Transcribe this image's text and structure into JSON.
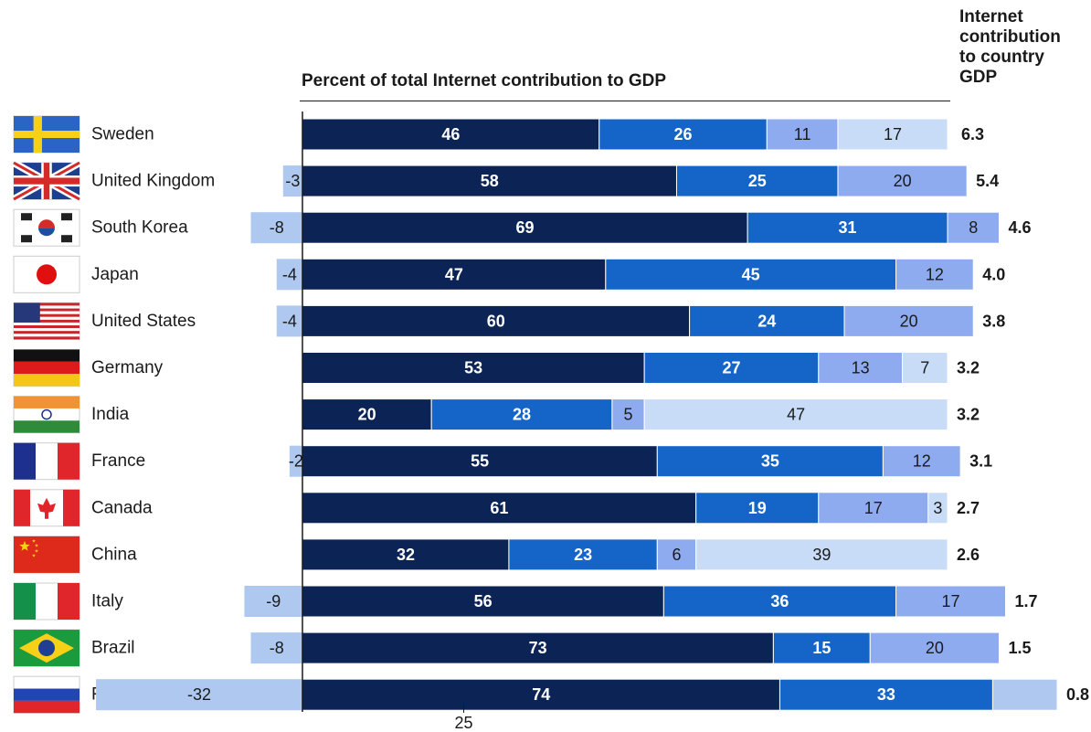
{
  "chart_data": {
    "type": "bar",
    "stacked": true,
    "orientation": "horizontal",
    "title": "Percent of total Internet contribution to GDP",
    "right_column_header": [
      "Internet",
      "contribution",
      "to country",
      "GDP"
    ],
    "categories": [
      "Sweden",
      "United Kingdom",
      "South Korea",
      "Japan",
      "United States",
      "Germany",
      "India",
      "France",
      "Canada",
      "China",
      "Italy",
      "Brazil",
      "Russia"
    ],
    "series": [
      {
        "color": "#0b2455",
        "label_color": "#ffffff",
        "values": [
          46,
          58,
          69,
          47,
          60,
          53,
          20,
          55,
          61,
          32,
          56,
          73,
          74
        ]
      },
      {
        "color": "#1565c8",
        "label_color": "#ffffff",
        "values": [
          26,
          25,
          31,
          45,
          24,
          27,
          28,
          35,
          19,
          23,
          36,
          15,
          33
        ]
      },
      {
        "color": "#8fabef",
        "label_color": "#1a1a1a",
        "values": [
          11,
          20,
          8,
          12,
          20,
          13,
          5,
          12,
          17,
          6,
          17,
          20,
          null
        ]
      },
      {
        "color": "#c8dcf7",
        "label_color": "#1a1a1a",
        "values": [
          17,
          null,
          null,
          null,
          null,
          7,
          47,
          null,
          3,
          39,
          null,
          null,
          null
        ]
      }
    ],
    "negative": {
      "color": "#aec8f0",
      "values": [
        null,
        -3,
        -8,
        -4,
        -4,
        null,
        null,
        -2,
        null,
        null,
        -9,
        -8,
        -32
      ]
    },
    "unlabeled_tail": [
      null,
      null,
      null,
      null,
      null,
      null,
      null,
      null,
      null,
      null,
      null,
      null,
      10
    ],
    "gdp_contribution": [
      "6.3",
      "5.4",
      "4.6",
      "4.0",
      "3.8",
      "3.2",
      "3.2",
      "3.1",
      "2.7",
      "2.6",
      "1.7",
      "1.5",
      "0.8"
    ],
    "x_ticks": [
      25
    ],
    "flags": [
      "sweden-flag",
      "uk-flag",
      "south-korea-flag",
      "japan-flag",
      "us-flag",
      "germany-flag",
      "india-flag",
      "france-flag",
      "canada-flag",
      "china-flag",
      "italy-flag",
      "brazil-flag",
      "russia-flag"
    ]
  }
}
